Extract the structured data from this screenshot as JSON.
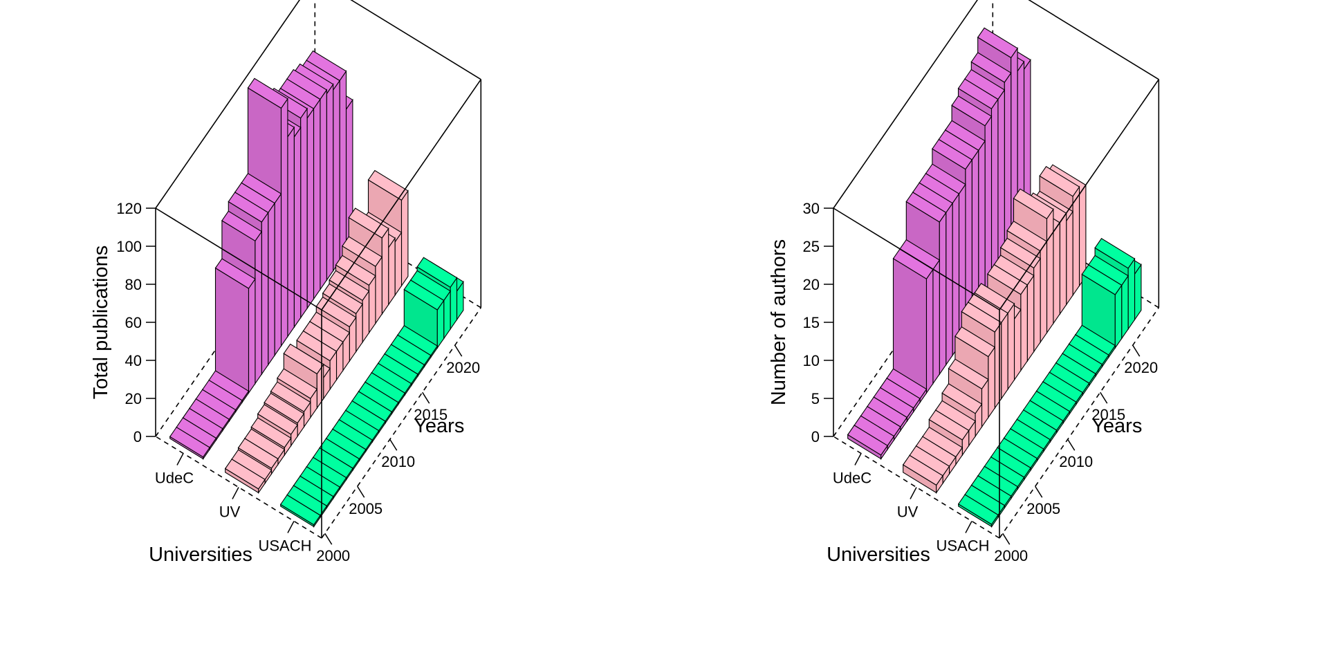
{
  "chart_data": [
    {
      "type": "bar",
      "zlabel": "Total publications",
      "xlabel": "Years",
      "ylabel": "Universities",
      "zlim": [
        0,
        120
      ],
      "z_ticks": [
        "0",
        "20",
        "40",
        "60",
        "80",
        "100",
        "120"
      ],
      "x_ticks": [
        "2000",
        "2005",
        "2010",
        "2015",
        "2020"
      ],
      "categories": [
        "2000",
        "2001",
        "2002",
        "2003",
        "2004",
        "2005",
        "2006",
        "2007",
        "2008",
        "2009",
        "2010",
        "2011",
        "2012",
        "2013",
        "2014",
        "2015",
        "2016",
        "2017",
        "2018",
        "2019",
        "2020",
        "2021",
        "2022"
      ],
      "series": [
        {
          "name": "UdeC",
          "color": "#DA70D6",
          "values": [
            1,
            1,
            1,
            1,
            1,
            1,
            1,
            55,
            75,
            80,
            80,
            80,
            125,
            105,
            100,
            105,
            100,
            100,
            100,
            98,
            95,
            95,
            75
          ]
        },
        {
          "name": "UV",
          "color": "#FFB6C1",
          "values": [
            2,
            2,
            3,
            3,
            4,
            6,
            7,
            8,
            10,
            18,
            11,
            15,
            15,
            15,
            18,
            20,
            22,
            25,
            30,
            40,
            30,
            28,
            45
          ]
        },
        {
          "name": "USACH",
          "color": "#00FA9A",
          "values": [
            1,
            1,
            1,
            1,
            1,
            1,
            1,
            1,
            1,
            1,
            1,
            1,
            1,
            1,
            1,
            1,
            1,
            1,
            1,
            20,
            20,
            22,
            15
          ]
        }
      ]
    },
    {
      "type": "bar",
      "zlabel": "Number of authors",
      "xlabel": "Years",
      "ylabel": "Universities",
      "zlim": [
        0,
        30
      ],
      "z_ticks": [
        "0",
        "5",
        "10",
        "15",
        "20",
        "25",
        "30"
      ],
      "x_ticks": [
        "2000",
        "2005",
        "2010",
        "2015",
        "2020"
      ],
      "categories": [
        "2000",
        "2001",
        "2002",
        "2003",
        "2004",
        "2005",
        "2006",
        "2007",
        "2008",
        "2009",
        "2010",
        "2011",
        "2012",
        "2013",
        "2014",
        "2015",
        "2016",
        "2017",
        "2018",
        "2019",
        "2020",
        "2021",
        "2022"
      ],
      "series": [
        {
          "name": "UdeC",
          "color": "#DA70D6",
          "values": [
            0.5,
            0.5,
            0.5,
            0.5,
            0.5,
            0.5,
            0.5,
            15,
            15,
            20,
            20,
            20,
            20,
            22,
            22,
            22,
            24,
            25,
            25,
            26,
            28,
            25,
            24
          ]
        },
        {
          "name": "UV",
          "color": "#FFB6C1",
          "values": [
            1,
            1,
            1,
            1,
            2,
            2,
            3,
            5,
            8,
            10,
            10,
            10,
            8,
            10,
            10,
            11,
            12,
            15,
            12,
            12,
            11,
            13,
            12
          ]
        },
        {
          "name": "USACH",
          "color": "#00FA9A",
          "values": [
            0.3,
            0.3,
            0.3,
            0.3,
            0.3,
            0.3,
            0.3,
            0.3,
            0.3,
            0.3,
            0.3,
            0.3,
            0.3,
            0.3,
            0.3,
            0.3,
            0.3,
            0.3,
            0.3,
            7,
            7,
            8,
            6
          ]
        }
      ]
    }
  ]
}
